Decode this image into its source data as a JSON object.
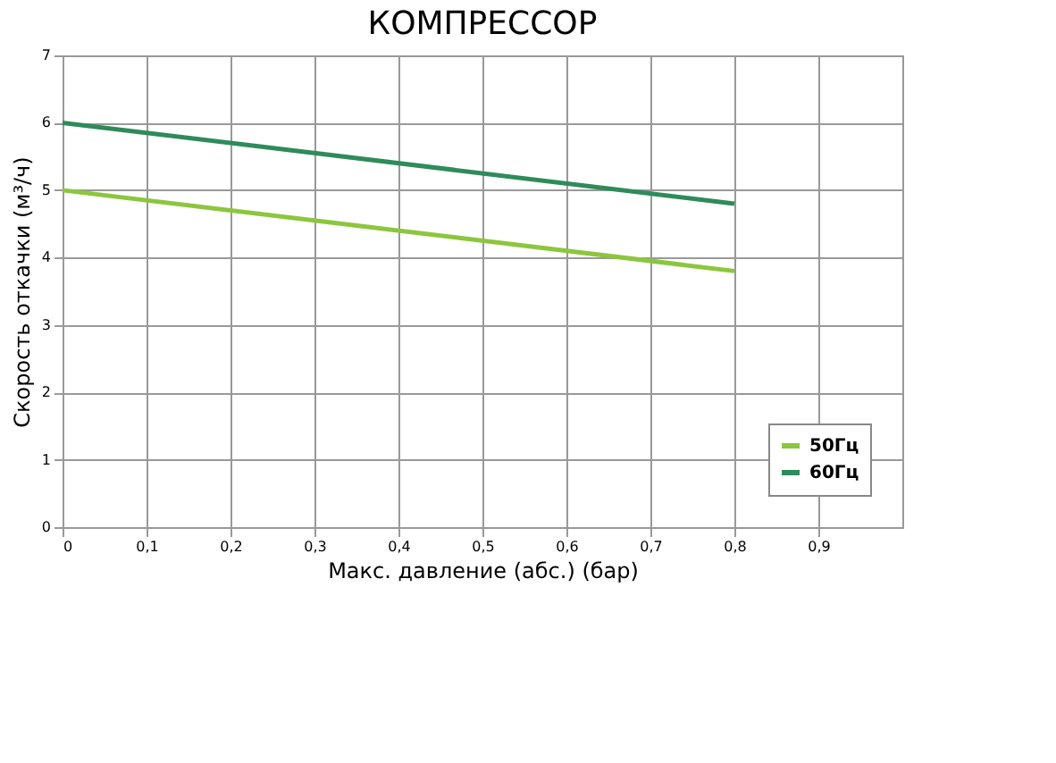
{
  "chart_data": {
    "type": "line",
    "title": "КОМПРЕССОР",
    "xlabel": "Макс. давление (абс.) (бар)",
    "ylabel": "Скорость откачки (м³/ч)",
    "xlim": [
      0,
      1
    ],
    "xticks": [
      0,
      {
        "value": 0.1,
        "label": "0,1"
      },
      {
        "value": 0.2,
        "label": "0,2"
      },
      {
        "value": 0.3,
        "label": "0,3"
      },
      {
        "value": 0.4,
        "label": "0,4"
      },
      {
        "value": 0.5,
        "label": "0,5"
      },
      {
        "value": 0.6,
        "label": "0,6"
      },
      {
        "value": 0.7,
        "label": "0,7"
      },
      {
        "value": 0.8,
        "label": "0,8"
      },
      {
        "value": 0.9,
        "label": "0,9"
      }
    ],
    "ylim": [
      0,
      7
    ],
    "yticks": [
      0,
      1,
      2,
      3,
      4,
      5,
      6,
      7
    ],
    "grid": true,
    "legend": "bottom right",
    "marker": "none",
    "line_style": "solid",
    "x": [
      0,
      0.8
    ],
    "series": [
      {
        "name": "50Гц",
        "color": "#8cc63e",
        "values": [
          5,
          3.8
        ]
      },
      {
        "name": "60Гц",
        "color": "#2e8b5a",
        "values": [
          6,
          4.8
        ]
      }
    ]
  }
}
